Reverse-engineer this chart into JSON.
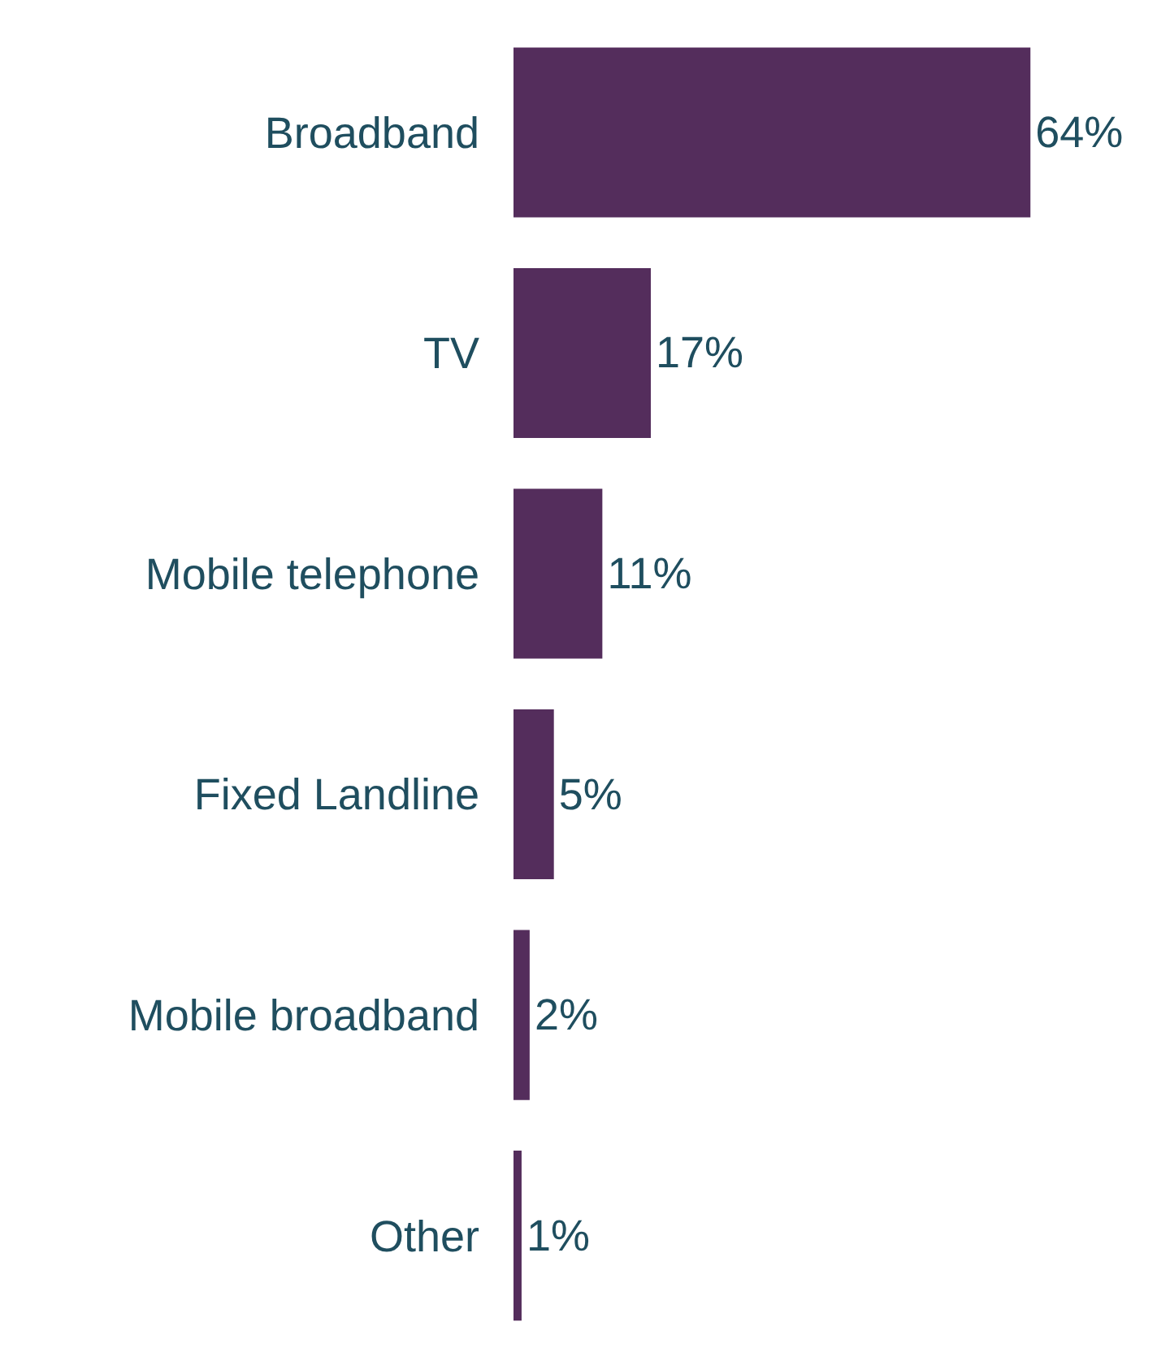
{
  "chart_data": {
    "type": "bar",
    "orientation": "horizontal",
    "categories": [
      "Broadband",
      "TV",
      "Mobile telephone",
      "Fixed Landline",
      "Mobile broadband",
      "Other"
    ],
    "values": [
      64,
      17,
      11,
      5,
      2,
      1
    ],
    "value_labels": [
      "64%",
      "17%",
      "11%",
      "5%",
      "2%",
      "1%"
    ],
    "color": "#542d5c"
  }
}
